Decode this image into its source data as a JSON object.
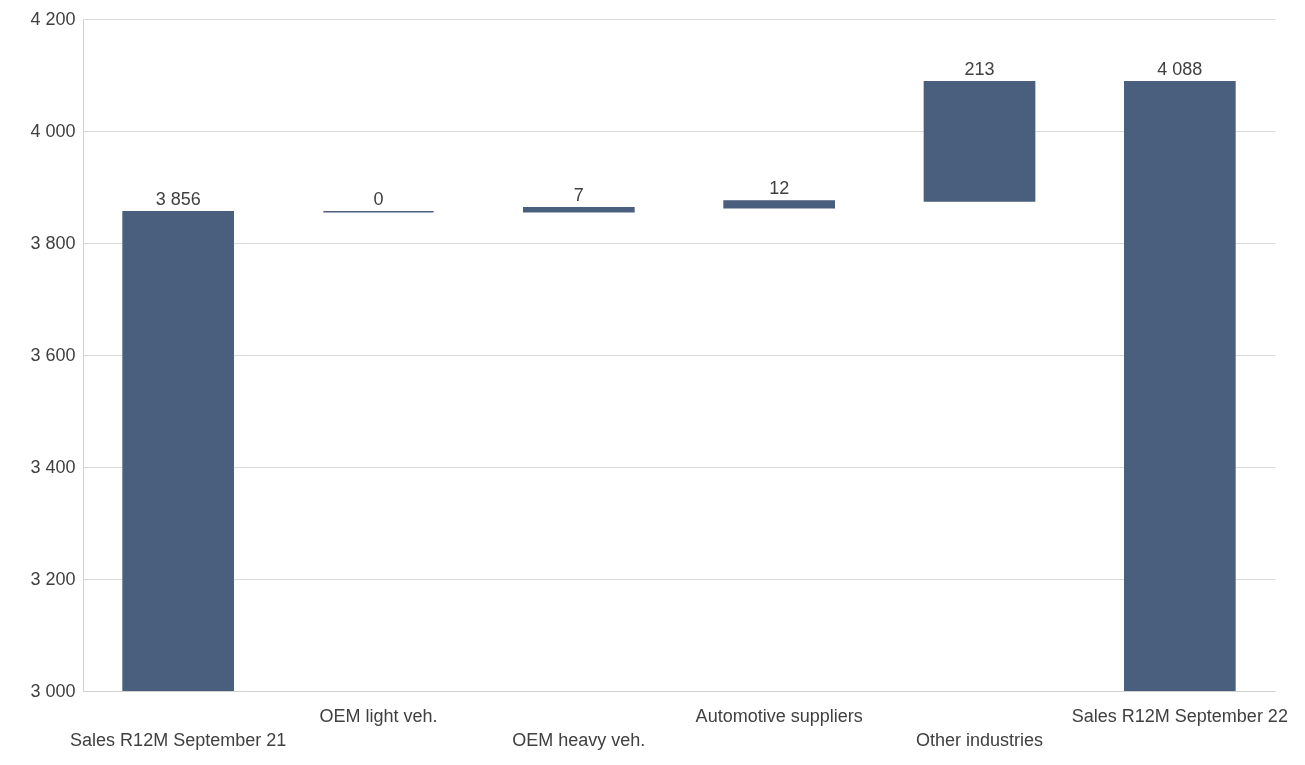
{
  "chart_data": {
    "type": "bar",
    "categories": [
      "Sales R12M September 21",
      "OEM light veh.",
      "OEM heavy veh.",
      "Automotive suppliers",
      "Other industries",
      "Sales R12M September 22"
    ],
    "values": [
      3856,
      0,
      7,
      12,
      213,
      4088
    ],
    "base": [
      null,
      3856,
      3856,
      3863,
      3875,
      null
    ],
    "value_labels": [
      "3 856",
      "0",
      "7",
      "12",
      "213",
      "4 088"
    ],
    "color": "#4a5e7e",
    "ylim": [
      3000,
      4200
    ],
    "yticks": [
      {
        "value": 3000,
        "label": "3 000"
      },
      {
        "value": 3200,
        "label": "3 200"
      },
      {
        "value": 3400,
        "label": "3 400"
      },
      {
        "value": 3600,
        "label": "3 600"
      },
      {
        "value": 3800,
        "label": "3 800"
      },
      {
        "value": 4000,
        "label": "4 000"
      },
      {
        "value": 4200,
        "label": "4 200"
      }
    ],
    "grid": "y"
  }
}
